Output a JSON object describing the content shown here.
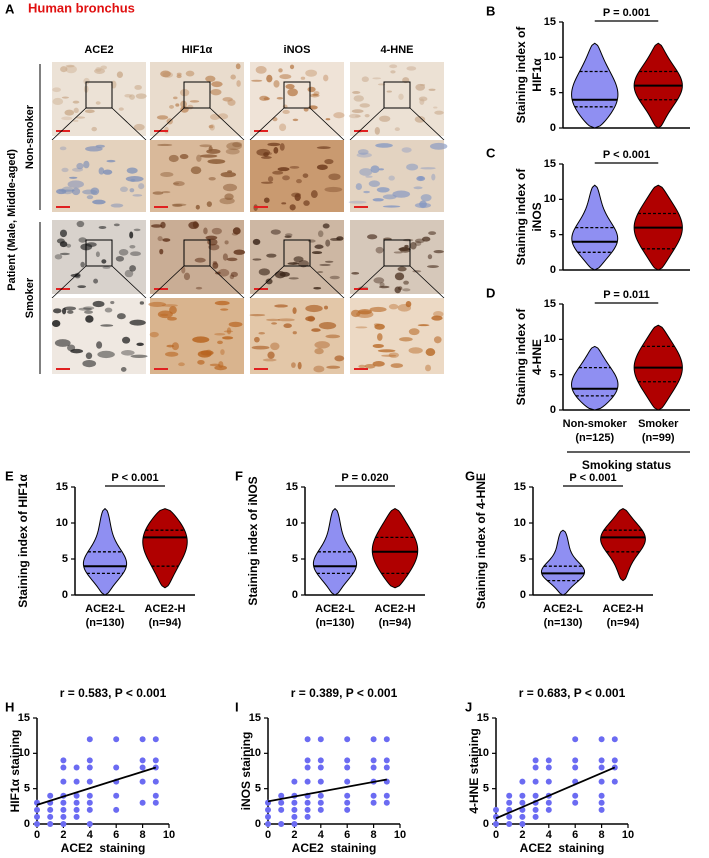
{
  "panel_a": {
    "letter": "A",
    "title": "Human bronchus",
    "columns": [
      "ACE2",
      "HIF1α",
      "iNOS",
      "4-HNE"
    ],
    "group_label": "Patient (Male, Middle-aged)",
    "rows": [
      "Non-smoker",
      "Smoker"
    ]
  },
  "chart_data": [
    {
      "type": "violin",
      "panel": "B",
      "ylabel": [
        "Staining index of",
        "HIF1α"
      ],
      "annotation": "P = 0.001",
      "categories": [
        null,
        null
      ],
      "ylim": [
        0,
        15
      ],
      "yticks": [
        0,
        5,
        10,
        15
      ],
      "groups": [
        {
          "color": "#8f8ff2",
          "min": 0,
          "q1": 3,
          "median": 4,
          "q3": 8,
          "max": 12
        },
        {
          "color": "#b00000",
          "min": 0,
          "q1": 4,
          "median": 6,
          "q3": 8,
          "max": 12
        }
      ]
    },
    {
      "type": "violin",
      "panel": "C",
      "ylabel": [
        "Staining index of",
        "iNOS"
      ],
      "annotation": "P < 0.001",
      "categories": [
        null,
        null
      ],
      "ylim": [
        0,
        15
      ],
      "yticks": [
        0,
        5,
        10,
        15
      ],
      "groups": [
        {
          "color": "#8f8ff2",
          "min": 0,
          "q1": 2.5,
          "median": 4,
          "q3": 6,
          "max": 12
        },
        {
          "color": "#b00000",
          "min": 0,
          "q1": 3,
          "median": 6,
          "q3": 8,
          "max": 12
        }
      ]
    },
    {
      "type": "violin",
      "panel": "D",
      "ylabel": [
        "Staining index of",
        "4-HNE"
      ],
      "annotation": "P = 0.011",
      "categories": [
        "Non-smoker",
        "Smoker"
      ],
      "category_counts": [
        "(n=125)",
        "(n=99)"
      ],
      "xlabel": "Smoking status",
      "ylim": [
        0,
        15
      ],
      "yticks": [
        0,
        5,
        10,
        15
      ],
      "groups": [
        {
          "color": "#8f8ff2",
          "min": 0,
          "q1": 2,
          "median": 3,
          "q3": 6,
          "max": 9
        },
        {
          "color": "#b00000",
          "min": 0,
          "q1": 4,
          "median": 6,
          "q3": 9,
          "max": 12
        }
      ]
    },
    {
      "type": "violin",
      "panel": "E",
      "ylabel": [
        "Staining index of HIF1α"
      ],
      "annotation": "P < 0.001",
      "categories": [
        "ACE2-L",
        "ACE2-H"
      ],
      "category_counts": [
        "(n=130)",
        "(n=94)"
      ],
      "ylim": [
        0,
        15
      ],
      "yticks": [
        0,
        5,
        10,
        15
      ],
      "groups": [
        {
          "color": "#8f8ff2",
          "min": 0,
          "q1": 3,
          "median": 4,
          "q3": 6,
          "max": 12
        },
        {
          "color": "#b00000",
          "min": 1,
          "q1": 4,
          "median": 8,
          "q3": 9,
          "max": 12
        }
      ]
    },
    {
      "type": "violin",
      "panel": "F",
      "ylabel": [
        "Staining index of iNOS"
      ],
      "annotation": "P = 0.020",
      "categories": [
        "ACE2-L",
        "ACE2-H"
      ],
      "category_counts": [
        "(n=130)",
        "(n=94)"
      ],
      "ylim": [
        0,
        15
      ],
      "yticks": [
        0,
        5,
        10,
        15
      ],
      "groups": [
        {
          "color": "#8f8ff2",
          "min": 0,
          "q1": 3,
          "median": 4,
          "q3": 6,
          "max": 12
        },
        {
          "color": "#b00000",
          "min": 1,
          "q1": 3,
          "median": 6,
          "q3": 8,
          "max": 12
        }
      ]
    },
    {
      "type": "violin",
      "panel": "G",
      "ylabel": [
        "Staining index of 4-HNE"
      ],
      "annotation": "P < 0.001",
      "categories": [
        "ACE2-L",
        "ACE2-H"
      ],
      "category_counts": [
        "(n=130)",
        "(n=94)"
      ],
      "ylim": [
        0,
        15
      ],
      "yticks": [
        0,
        5,
        10,
        15
      ],
      "groups": [
        {
          "color": "#8f8ff2",
          "min": 0,
          "q1": 2,
          "median": 3,
          "q3": 4,
          "max": 9
        },
        {
          "color": "#b00000",
          "min": 2,
          "q1": 6,
          "median": 8,
          "q3": 9,
          "max": 12
        }
      ]
    },
    {
      "type": "scatter",
      "panel": "H",
      "title": "r = 0.583, P < 0.001",
      "xlabel": "ACE2  staining",
      "ylabel": [
        "HIF1α staining"
      ],
      "color": "#6b6bf2",
      "xlim": [
        0,
        10
      ],
      "xticks": [
        0,
        2,
        4,
        6,
        8,
        10
      ],
      "ylim": [
        0,
        15
      ],
      "yticks": [
        0,
        5,
        10,
        15
      ],
      "x": [
        0,
        0,
        0,
        0,
        1,
        1,
        1,
        1,
        1,
        2,
        2,
        2,
        2,
        2,
        2,
        2,
        2,
        3,
        3,
        3,
        3,
        3,
        3,
        4,
        4,
        4,
        4,
        4,
        4,
        4,
        4,
        6,
        6,
        6,
        6,
        6,
        8,
        8,
        8,
        8,
        8,
        9,
        9,
        9,
        9,
        9,
        9
      ],
      "y": [
        0,
        1,
        2,
        3,
        0,
        1,
        2,
        3,
        4,
        0,
        1,
        2,
        3,
        4,
        6,
        8,
        9,
        1,
        2,
        3,
        4,
        6,
        8,
        0,
        2,
        3,
        4,
        6,
        8,
        9,
        12,
        2,
        4,
        6,
        8,
        12,
        3,
        6,
        8,
        9,
        12,
        3,
        4,
        6,
        8,
        9,
        12
      ],
      "fit": {
        "x": [
          0,
          9
        ],
        "y": [
          2.7,
          8
        ]
      }
    },
    {
      "type": "scatter",
      "panel": "I",
      "title": "r = 0.389, P < 0.001",
      "xlabel": "ACE2  staining",
      "ylabel": [
        "iNOS staining"
      ],
      "color": "#6b6bf2",
      "xlim": [
        0,
        10
      ],
      "xticks": [
        0,
        2,
        4,
        6,
        8,
        10
      ],
      "ylim": [
        0,
        15
      ],
      "yticks": [
        0,
        5,
        10,
        15
      ],
      "x": [
        0,
        0,
        0,
        0,
        1,
        1,
        1,
        1,
        2,
        2,
        2,
        2,
        2,
        2,
        3,
        3,
        3,
        3,
        3,
        3,
        3,
        3,
        4,
        4,
        4,
        4,
        4,
        4,
        4,
        6,
        6,
        6,
        6,
        6,
        6,
        6,
        8,
        8,
        8,
        8,
        8,
        8,
        9,
        9,
        9,
        9,
        9,
        9
      ],
      "y": [
        0,
        1,
        2,
        3,
        0,
        2,
        3,
        4,
        0,
        1,
        2,
        3,
        4,
        6,
        1,
        2,
        3,
        4,
        6,
        8,
        9,
        12,
        2,
        3,
        4,
        6,
        8,
        9,
        12,
        2,
        3,
        4,
        6,
        8,
        9,
        12,
        3,
        4,
        6,
        8,
        9,
        12,
        3,
        4,
        6,
        8,
        9,
        12
      ],
      "fit": {
        "x": [
          0,
          9
        ],
        "y": [
          3.2,
          6.3
        ]
      }
    },
    {
      "type": "scatter",
      "panel": "J",
      "title": "r = 0.683, P < 0.001",
      "xlabel": "ACE2  staining",
      "ylabel": [
        "4-HNE staining"
      ],
      "color": "#6b6bf2",
      "xlim": [
        0,
        10
      ],
      "xticks": [
        0,
        2,
        4,
        6,
        8,
        10
      ],
      "ylim": [
        0,
        15
      ],
      "yticks": [
        0,
        5,
        10,
        15
      ],
      "x": [
        0,
        0,
        0,
        1,
        1,
        1,
        1,
        1,
        2,
        2,
        2,
        2,
        2,
        2,
        3,
        3,
        3,
        3,
        3,
        3,
        3,
        4,
        4,
        4,
        4,
        4,
        4,
        6,
        6,
        6,
        6,
        6,
        6,
        8,
        8,
        8,
        8,
        8,
        8,
        8,
        9,
        9,
        9,
        9
      ],
      "y": [
        0,
        1,
        2,
        0,
        1,
        2,
        3,
        4,
        0,
        1,
        2,
        3,
        4,
        6,
        1,
        2,
        3,
        4,
        6,
        8,
        9,
        2,
        3,
        4,
        6,
        8,
        9,
        3,
        4,
        6,
        8,
        9,
        12,
        2,
        3,
        4,
        6,
        8,
        9,
        12,
        6,
        8,
        9,
        12
      ],
      "fit": {
        "x": [
          0,
          9
        ],
        "y": [
          0.8,
          8
        ]
      }
    }
  ]
}
